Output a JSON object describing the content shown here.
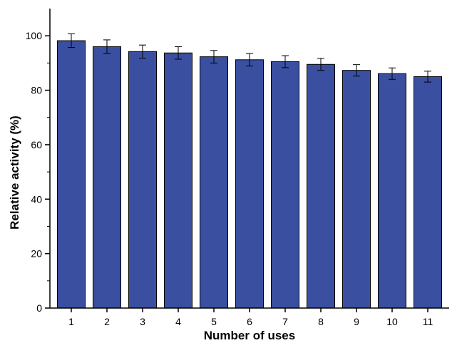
{
  "chart_data": {
    "type": "bar",
    "title": "",
    "xlabel": "Number of uses",
    "ylabel": "Relative activity (%)",
    "categories": [
      "1",
      "2",
      "3",
      "4",
      "5",
      "6",
      "7",
      "8",
      "9",
      "10",
      "11"
    ],
    "values": [
      98.2,
      96.0,
      94.2,
      93.7,
      92.3,
      91.2,
      90.5,
      89.5,
      87.3,
      86.1,
      85.0
    ],
    "errors": [
      2.5,
      2.5,
      2.4,
      2.3,
      2.3,
      2.3,
      2.2,
      2.2,
      2.1,
      2.1,
      2.0
    ],
    "ylim": [
      0,
      110
    ],
    "yticks": [
      "0",
      "20",
      "40",
      "60",
      "80",
      "100"
    ],
    "grid": false,
    "legend": "none",
    "bar_color": "#3a4fa0",
    "bar_edge_color": "#000000"
  }
}
